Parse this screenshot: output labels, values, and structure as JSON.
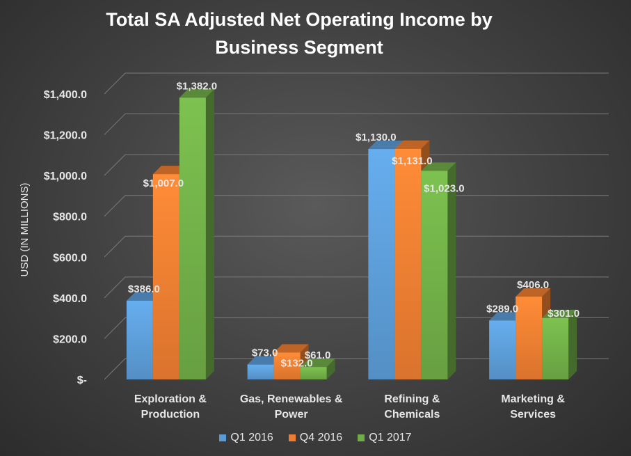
{
  "chart_data": {
    "type": "bar",
    "title_line1": "Total SA Adjusted Net Operating Income by",
    "title_line2": "Business Segment",
    "ylabel": "USD (IN MILLIONS)",
    "xlabel": "",
    "categories": [
      [
        "Exploration &",
        "Production"
      ],
      [
        "Gas, Renewables &",
        "Power"
      ],
      [
        "Refining &",
        "Chemicals"
      ],
      [
        "Marketing &",
        "Services"
      ]
    ],
    "series": [
      {
        "name": "Q1 2016",
        "color": "#5b9bd5",
        "values": [
          386,
          73,
          1130,
          289
        ],
        "labels": [
          "$386.0",
          "$73.0",
          "$1,130.0",
          "$289.0"
        ]
      },
      {
        "name": "Q4 2016",
        "color": "#ed7d31",
        "values": [
          1007,
          132,
          1131,
          406
        ],
        "labels": [
          "$1,007.0",
          "$132.0",
          "$1,131.0",
          "$406.0"
        ]
      },
      {
        "name": "Q1 2017",
        "color": "#70ad47",
        "values": [
          1382,
          61,
          1023,
          301
        ],
        "labels": [
          "$1,382.0",
          "$61.0",
          "$1,023.0",
          "$301.0"
        ]
      }
    ],
    "yticks": [
      0,
      200,
      400,
      600,
      800,
      1000,
      1200,
      1400
    ],
    "ytick_labels": [
      "$-",
      "$200.0",
      "$400.0",
      "$600.0",
      "$800.0",
      "$1,000.0",
      "$1,200.0",
      "$1,400.0"
    ],
    "ylim": [
      0,
      1400
    ],
    "grid": true,
    "legend_position": "bottom"
  }
}
